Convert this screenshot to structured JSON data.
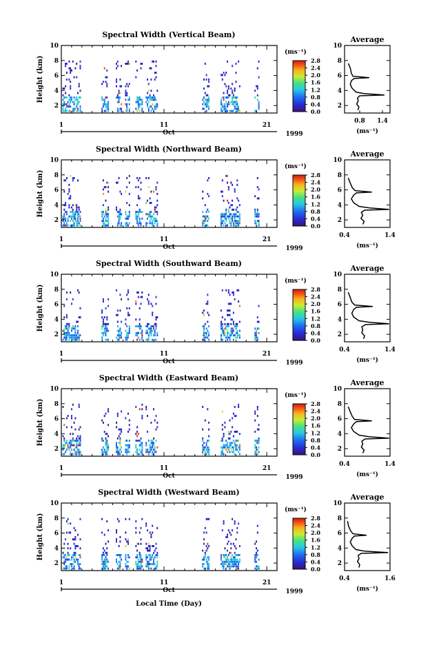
{
  "figure": {
    "xlabel": "Local Time (Day)"
  },
  "chart_data": [
    {
      "type": "heatmap",
      "title": "Spectral Width (Vertical Beam)",
      "ylabel": "Height (km)",
      "x_ticks": [
        "1",
        "11",
        "21"
      ],
      "month_label": "Oct",
      "year_label": "1999",
      "xlim": [
        1,
        22
      ],
      "ylim": [
        1,
        10
      ],
      "y_ticks": [
        "2",
        "4",
        "6",
        "8",
        "10"
      ],
      "colorbar": {
        "unit": "(ms⁻¹)",
        "ticks": [
          "0.0",
          "0.4",
          "0.8",
          "1.2",
          "1.6",
          "2.0",
          "2.4",
          "2.8"
        ],
        "range": [
          0,
          2.8
        ]
      },
      "average": {
        "title": "Average",
        "xlabel": "(ms⁻¹)",
        "x_ticks": [
          "0.8",
          "1.4"
        ],
        "xlim": [
          0.4,
          1.6
        ],
        "ylim": [
          1,
          10
        ],
        "y_ticks": [
          "2",
          "4",
          "6",
          "8",
          "10"
        ],
        "profile": [
          [
            0.75,
            1.4
          ],
          [
            0.78,
            1.8
          ],
          [
            0.72,
            2.2
          ],
          [
            0.76,
            2.6
          ],
          [
            0.74,
            3.0
          ],
          [
            0.8,
            3.3
          ],
          [
            1.45,
            3.4
          ],
          [
            0.9,
            3.6
          ],
          [
            0.7,
            3.8
          ],
          [
            0.6,
            4.3
          ],
          [
            0.55,
            4.8
          ],
          [
            0.58,
            5.3
          ],
          [
            0.65,
            5.6
          ],
          [
            1.05,
            5.7
          ],
          [
            0.62,
            5.9
          ],
          [
            0.58,
            6.3
          ],
          [
            0.55,
            7.0
          ],
          [
            0.5,
            7.6
          ]
        ]
      }
    },
    {
      "type": "heatmap",
      "title": "Spectral Width (Northward Beam)",
      "ylabel": "Height (km)",
      "x_ticks": [
        "1",
        "11",
        "21"
      ],
      "month_label": "Oct",
      "year_label": "1999",
      "xlim": [
        1,
        22
      ],
      "ylim": [
        1,
        10
      ],
      "y_ticks": [
        "2",
        "4",
        "6",
        "8",
        "10"
      ],
      "colorbar": {
        "unit": "(ms⁻¹)",
        "ticks": [
          "0.0",
          "0.4",
          "0.8",
          "1.2",
          "1.6",
          "2.0",
          "2.4",
          "2.8"
        ],
        "range": [
          0,
          2.8
        ]
      },
      "average": {
        "title": "Average",
        "xlabel": "(ms⁻¹)",
        "x_ticks": [
          "0.4",
          "1.4"
        ],
        "xlim": [
          0.4,
          1.4
        ],
        "ylim": [
          1,
          10
        ],
        "y_ticks": [
          "2",
          "4",
          "6",
          "8",
          "10"
        ],
        "profile": [
          [
            0.8,
            1.4
          ],
          [
            0.83,
            1.8
          ],
          [
            0.76,
            2.2
          ],
          [
            0.8,
            2.6
          ],
          [
            0.77,
            3.0
          ],
          [
            0.84,
            3.3
          ],
          [
            1.38,
            3.4
          ],
          [
            0.95,
            3.6
          ],
          [
            0.72,
            3.8
          ],
          [
            0.6,
            4.3
          ],
          [
            0.55,
            4.8
          ],
          [
            0.6,
            5.3
          ],
          [
            0.66,
            5.6
          ],
          [
            1.0,
            5.7
          ],
          [
            0.63,
            5.9
          ],
          [
            0.57,
            6.3
          ],
          [
            0.52,
            7.0
          ],
          [
            0.48,
            7.6
          ]
        ]
      }
    },
    {
      "type": "heatmap",
      "title": "Spectral Width (Southward Beam)",
      "ylabel": "Height (km)",
      "x_ticks": [
        "1",
        "11",
        "21"
      ],
      "month_label": "Oct",
      "year_label": "1999",
      "xlim": [
        1,
        22
      ],
      "ylim": [
        1,
        10
      ],
      "y_ticks": [
        "2",
        "4",
        "6",
        "8",
        "10"
      ],
      "colorbar": {
        "unit": "(ms⁻¹)",
        "ticks": [
          "0.0",
          "0.4",
          "0.8",
          "1.2",
          "1.6",
          "2.0",
          "2.4",
          "2.8"
        ],
        "range": [
          0,
          2.8
        ]
      },
      "average": {
        "title": "Average",
        "xlabel": "(ms⁻¹)",
        "x_ticks": [
          "0.4",
          "1.4"
        ],
        "xlim": [
          0.4,
          1.4
        ],
        "ylim": [
          1,
          10
        ],
        "y_ticks": [
          "2",
          "4",
          "6",
          "8",
          "10"
        ],
        "profile": [
          [
            0.82,
            1.4
          ],
          [
            0.84,
            1.8
          ],
          [
            0.78,
            2.2
          ],
          [
            0.8,
            2.6
          ],
          [
            0.78,
            3.0
          ],
          [
            0.86,
            3.3
          ],
          [
            1.38,
            3.4
          ],
          [
            0.96,
            3.6
          ],
          [
            0.72,
            3.8
          ],
          [
            0.6,
            4.3
          ],
          [
            0.56,
            4.8
          ],
          [
            0.6,
            5.3
          ],
          [
            0.66,
            5.6
          ],
          [
            1.02,
            5.7
          ],
          [
            0.62,
            5.9
          ],
          [
            0.56,
            6.3
          ],
          [
            0.52,
            7.0
          ],
          [
            0.48,
            7.6
          ]
        ]
      }
    },
    {
      "type": "heatmap",
      "title": "Spectral Width (Eastward Beam)",
      "ylabel": "Height (km)",
      "x_ticks": [
        "1",
        "11",
        "21"
      ],
      "month_label": "Oct",
      "year_label": "1999",
      "xlim": [
        1,
        22
      ],
      "ylim": [
        1,
        10
      ],
      "y_ticks": [
        "2",
        "4",
        "6",
        "8",
        "10"
      ],
      "colorbar": {
        "unit": "(ms⁻¹)",
        "ticks": [
          "0.0",
          "0.4",
          "0.8",
          "1.2",
          "1.6",
          "2.0",
          "2.4",
          "2.8"
        ],
        "range": [
          0,
          2.8
        ]
      },
      "average": {
        "title": "Average",
        "xlabel": "(ms⁻¹)",
        "x_ticks": [
          "0.4",
          "1.4"
        ],
        "xlim": [
          0.4,
          1.4
        ],
        "ylim": [
          1,
          10
        ],
        "y_ticks": [
          "2",
          "4",
          "6",
          "8",
          "10"
        ],
        "profile": [
          [
            0.8,
            1.4
          ],
          [
            0.83,
            1.8
          ],
          [
            0.77,
            2.2
          ],
          [
            0.8,
            2.6
          ],
          [
            0.78,
            3.0
          ],
          [
            0.85,
            3.3
          ],
          [
            1.38,
            3.4
          ],
          [
            0.94,
            3.6
          ],
          [
            0.72,
            3.8
          ],
          [
            0.6,
            4.3
          ],
          [
            0.55,
            4.8
          ],
          [
            0.6,
            5.3
          ],
          [
            0.66,
            5.6
          ],
          [
            1.0,
            5.7
          ],
          [
            0.62,
            5.9
          ],
          [
            0.57,
            6.3
          ],
          [
            0.52,
            7.0
          ],
          [
            0.48,
            7.6
          ]
        ]
      }
    },
    {
      "type": "heatmap",
      "title": "Spectral Width (Westward Beam)",
      "ylabel": "Height (km)",
      "x_ticks": [
        "1",
        "11",
        "21"
      ],
      "month_label": "Oct",
      "year_label": "1999",
      "xlim": [
        1,
        22
      ],
      "ylim": [
        1,
        10
      ],
      "y_ticks": [
        "2",
        "4",
        "6",
        "8",
        "10"
      ],
      "colorbar": {
        "unit": "(ms⁻¹)",
        "ticks": [
          "0.0",
          "0.4",
          "0.8",
          "1.2",
          "1.6",
          "2.0",
          "2.4",
          "2.8"
        ],
        "range": [
          0,
          2.8
        ]
      },
      "average": {
        "title": "Average",
        "xlabel": "(ms⁻¹)",
        "x_ticks": [
          "0.4",
          "1.6"
        ],
        "xlim": [
          0.4,
          1.6
        ],
        "ylim": [
          1,
          10
        ],
        "y_ticks": [
          "2",
          "4",
          "6",
          "8",
          "10"
        ],
        "profile": [
          [
            0.78,
            1.4
          ],
          [
            0.8,
            1.8
          ],
          [
            0.74,
            2.2
          ],
          [
            0.78,
            2.6
          ],
          [
            0.76,
            3.0
          ],
          [
            0.84,
            3.3
          ],
          [
            1.55,
            3.4
          ],
          [
            0.92,
            3.6
          ],
          [
            0.7,
            3.8
          ],
          [
            0.6,
            4.3
          ],
          [
            0.55,
            4.8
          ],
          [
            0.6,
            5.3
          ],
          [
            0.66,
            5.6
          ],
          [
            0.98,
            5.7
          ],
          [
            0.62,
            5.9
          ],
          [
            0.56,
            6.3
          ],
          [
            0.5,
            7.0
          ],
          [
            0.48,
            7.6
          ]
        ]
      }
    }
  ]
}
